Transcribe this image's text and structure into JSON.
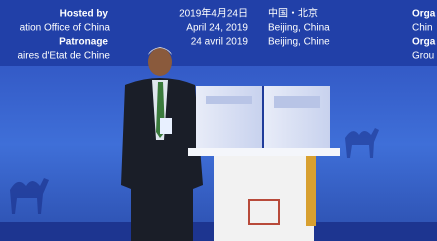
{
  "banner": {
    "left": [
      "Hosted by",
      "ation Office of China",
      "Patronage",
      "aires d'Etat de Chine"
    ],
    "dates": [
      "2019年4月24日",
      "April 24, 2019",
      "24 avril 2019"
    ],
    "places": [
      "中国・北京",
      "Beijing, China",
      "Beijing, Chine"
    ],
    "right": [
      "Orga",
      "Chin",
      "Orga",
      "Grou"
    ]
  }
}
